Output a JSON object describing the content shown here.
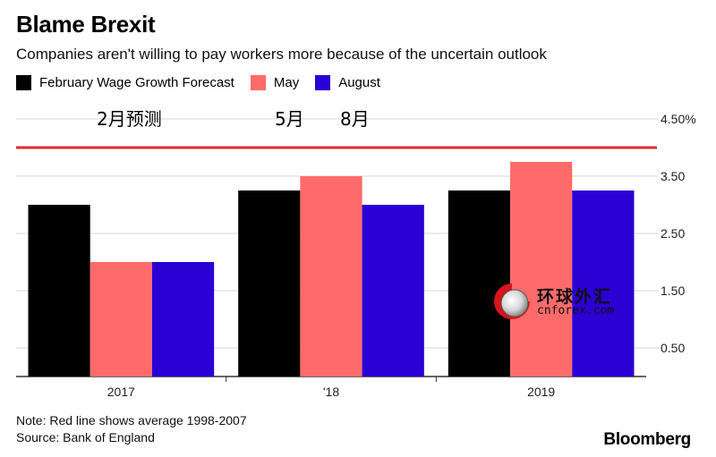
{
  "header": {
    "title": "Blame Brexit",
    "subtitle": "Companies aren't willing to pay workers more because of the uncertain outlook"
  },
  "annotations": [
    {
      "text": "2月预测"
    },
    {
      "text": "5月"
    },
    {
      "text": "8月"
    }
  ],
  "footer": {
    "note": "Note: Red line shows average 1998-2007",
    "source": "Source: Bank of England",
    "brand": "Bloomberg"
  },
  "watermark": {
    "chinese": "环球外汇",
    "domain": "cnforex.com"
  },
  "colors": {
    "february": "#000000",
    "may": "#ff6b6b",
    "august": "#2a00d4",
    "reference_line": "#e0282e"
  },
  "chart_data": {
    "type": "bar",
    "categories": [
      "2017",
      "'18",
      "2019"
    ],
    "series": [
      {
        "name": "February Wage Growth Forecast",
        "values": [
          3.0,
          3.25,
          3.25
        ]
      },
      {
        "name": "May",
        "values": [
          2.0,
          3.5,
          3.75
        ]
      },
      {
        "name": "August",
        "values": [
          2.0,
          3.0,
          3.25
        ]
      }
    ],
    "reference_line": {
      "value": 4.0
    },
    "y_ticks": [
      {
        "value": 4.5,
        "label": "4.50%"
      },
      {
        "value": 3.5,
        "label": "3.50"
      },
      {
        "value": 2.5,
        "label": "2.50"
      },
      {
        "value": 1.5,
        "label": "1.50"
      },
      {
        "value": 0.5,
        "label": "0.50"
      }
    ],
    "ylim": [
      0,
      4.5
    ],
    "grid": true,
    "y_axis_position": "right",
    "legend_position": "top-left"
  }
}
